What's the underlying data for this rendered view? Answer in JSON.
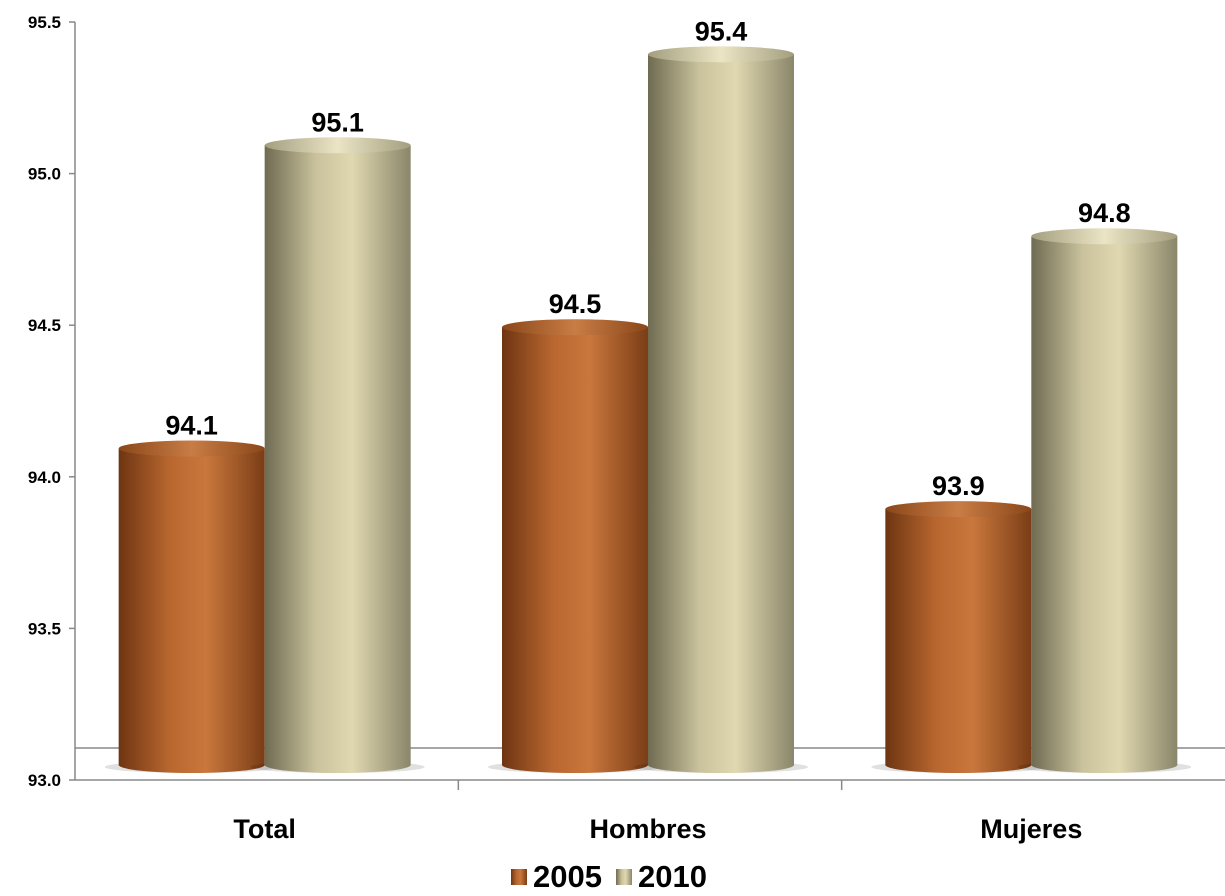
{
  "chart_data": {
    "type": "bar",
    "categories": [
      "Total",
      "Hombres",
      "Mujeres"
    ],
    "series": [
      {
        "name": "2005",
        "values": [
          94.1,
          94.5,
          93.9
        ],
        "labels": [
          "94.1",
          "94.5",
          "93.9"
        ]
      },
      {
        "name": "2010",
        "values": [
          95.1,
          95.4,
          94.8
        ],
        "labels": [
          "95.1",
          "95.4",
          "94.8"
        ]
      }
    ],
    "ylim": [
      93.0,
      95.5
    ],
    "yticks": [
      "93.0",
      "93.5",
      "94.0",
      "94.5",
      "95.0",
      "95.5"
    ],
    "legend_position": "bottom",
    "grid": false
  },
  "colors": {
    "2005_light": "#c9773c",
    "2005_dark": "#6e3512",
    "2010_light": "#e0d8b0",
    "2010_dark": "#6f6b52"
  }
}
